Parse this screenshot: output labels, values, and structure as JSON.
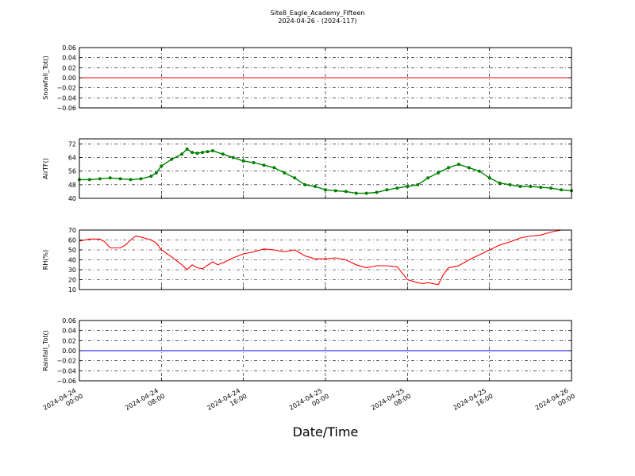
{
  "figure": {
    "title": "Site8_Eagle_Academy_Fifteen",
    "subtitle": "2024-04-26 - (2024-117)",
    "xlabel": "Date/Time"
  },
  "chart_data": [
    {
      "type": "line",
      "ylabel": "Snowfall_Tot()",
      "ylim": [
        -0.06,
        0.06
      ],
      "yticks": [
        "0.06",
        "0.04",
        "0.02",
        "0.00",
        "−0.02",
        "−0.04",
        "−0.06"
      ],
      "ytick_values": [
        0.06,
        0.04,
        0.02,
        0.0,
        -0.02,
        -0.04,
        -0.06
      ],
      "grid": true,
      "series": [
        {
          "color": "#ff0000",
          "marker": false,
          "x": [
            0,
            48
          ],
          "y": [
            0.0,
            0.0
          ]
        }
      ]
    },
    {
      "type": "line",
      "ylabel": "AirTF()",
      "ylim": [
        40,
        75
      ],
      "yticks": [
        "72",
        "64",
        "56",
        "48",
        "40"
      ],
      "ytick_values": [
        72,
        64,
        56,
        48,
        40
      ],
      "grid": true,
      "series": [
        {
          "color": "#008000",
          "marker": true,
          "x": [
            0,
            1,
            2,
            3,
            4,
            5,
            6,
            7,
            7.5,
            8,
            9,
            10,
            10.5,
            11,
            11.5,
            12,
            12.5,
            13,
            14,
            15,
            16,
            17,
            18,
            19,
            20,
            21,
            22,
            23,
            24,
            25,
            26,
            27,
            28,
            29,
            30,
            31,
            32,
            33,
            34,
            35,
            36,
            37,
            38,
            39,
            40,
            41,
            42,
            43,
            44,
            45,
            46,
            47,
            48
          ],
          "y": [
            51,
            51,
            51.5,
            52,
            51.5,
            51,
            51.5,
            53,
            55,
            59,
            63,
            66,
            69,
            67,
            66.5,
            67,
            67.5,
            68,
            66,
            64,
            62,
            61,
            59.5,
            58,
            55,
            52,
            48,
            47,
            45,
            44.5,
            44,
            43,
            43,
            43.5,
            45,
            46,
            47,
            48,
            52,
            55,
            58,
            60,
            58,
            56,
            52,
            49,
            48,
            47,
            47,
            46.5,
            46,
            45,
            44.5
          ]
        }
      ]
    },
    {
      "type": "line",
      "ylabel": "RH(%)",
      "ylim": [
        10,
        70
      ],
      "yticks": [
        "70",
        "60",
        "50",
        "40",
        "30",
        "20",
        "10"
      ],
      "ytick_values": [
        70,
        60,
        50,
        40,
        30,
        20,
        10
      ],
      "grid": true,
      "series": [
        {
          "color": "#ff0000",
          "marker": false,
          "x": [
            0,
            1,
            2,
            2.5,
            3,
            4,
            4.5,
            5,
            5.5,
            6,
            7,
            7.5,
            8,
            9,
            10,
            10.5,
            11,
            11.5,
            12,
            13,
            13.5,
            14,
            15,
            16,
            17,
            18,
            19,
            20,
            21,
            22,
            23,
            24,
            25,
            26,
            27,
            28,
            29,
            30,
            31,
            32,
            33,
            33.5,
            34,
            35,
            35.5,
            36,
            36.5,
            37,
            38,
            39,
            40,
            41,
            42,
            43,
            44,
            45,
            46,
            47,
            48
          ],
          "y": [
            59,
            61,
            61,
            58,
            52,
            52,
            55,
            60,
            64,
            63,
            60,
            57,
            50,
            43,
            35,
            30,
            35,
            32,
            31,
            38,
            35,
            37,
            42,
            46,
            48,
            51,
            50,
            48,
            50,
            44,
            41,
            41,
            42,
            40,
            35,
            32,
            34,
            34,
            33,
            20,
            17,
            16,
            17,
            15,
            25,
            32,
            33,
            34,
            40,
            45,
            50,
            55,
            58,
            62,
            64,
            65,
            68,
            70,
            70
          ]
        }
      ]
    },
    {
      "type": "line",
      "ylabel": "Rainfall_Tot()",
      "ylim": [
        -0.06,
        0.06
      ],
      "yticks": [
        "0.06",
        "0.04",
        "0.02",
        "0.00",
        "−0.02",
        "−0.04",
        "−0.06"
      ],
      "ytick_values": [
        0.06,
        0.04,
        0.02,
        0.0,
        -0.02,
        -0.04,
        -0.06
      ],
      "grid": true,
      "series": [
        {
          "color": "#0000ff",
          "marker": false,
          "x": [
            0,
            48
          ],
          "y": [
            0.0,
            0.0
          ]
        }
      ]
    }
  ],
  "x_axis": {
    "xlim": [
      0,
      48
    ],
    "tick_values": [
      0,
      8,
      16,
      24,
      32,
      40,
      48
    ],
    "tick_dates": [
      "2024-04-24",
      "2024-04-24",
      "2024-04-24",
      "2024-04-25",
      "2024-04-25",
      "2024-04-25",
      "2024-04-26"
    ],
    "tick_times": [
      "00:00",
      "08:00",
      "16:00",
      "00:00",
      "08:00",
      "16:00",
      "00:00"
    ]
  }
}
